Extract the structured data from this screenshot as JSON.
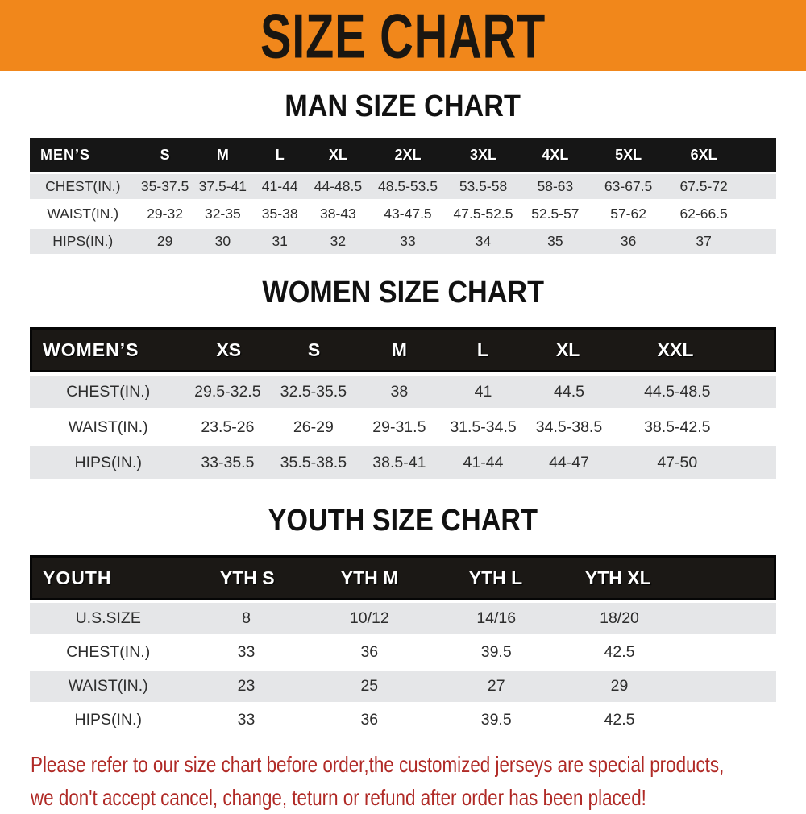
{
  "banner": {
    "title": "SIZE CHART",
    "bg_color": "#F1871B",
    "text_color": "#1a1611"
  },
  "colors": {
    "header_bar": "#161616",
    "row_gray": "#e5e6e8",
    "row_white": "#ffffff",
    "footer_text": "#B02A26"
  },
  "sections": {
    "men": {
      "heading": "MAN SIZE CHART",
      "table": {
        "header": [
          "MEN’S",
          "S",
          "M",
          "L",
          "XL",
          "2XL",
          "3XL",
          "4XL",
          "5XL",
          "6XL"
        ],
        "rows": [
          [
            "CHEST(IN.)",
            "35-37.5",
            "37.5-41",
            "41-44",
            "44-48.5",
            "48.5-53.5",
            "53.5-58",
            "58-63",
            "63-67.5",
            "67.5-72"
          ],
          [
            "WAIST(IN.)",
            "29-32",
            "32-35",
            "35-38",
            "38-43",
            "43-47.5",
            "47.5-52.5",
            "52.5-57",
            "57-62",
            "62-66.5"
          ],
          [
            "HIPS(IN.)",
            "29",
            "30",
            "31",
            "32",
            "33",
            "34",
            "35",
            "36",
            "37"
          ]
        ]
      }
    },
    "women": {
      "heading": "WOMEN SIZE CHART",
      "table": {
        "header": [
          "WOMEN’S",
          "XS",
          "S",
          "M",
          "L",
          "XL",
          "XXL"
        ],
        "rows": [
          [
            "CHEST(IN.)",
            "29.5-32.5",
            "32.5-35.5",
            "38",
            "41",
            "44.5",
            "44.5-48.5"
          ],
          [
            "WAIST(IN.)",
            "23.5-26",
            "26-29",
            "29-31.5",
            "31.5-34.5",
            "34.5-38.5",
            "38.5-42.5"
          ],
          [
            "HIPS(IN.)",
            "33-35.5",
            "35.5-38.5",
            "38.5-41",
            "41-44",
            "44-47",
            "47-50"
          ]
        ]
      }
    },
    "youth": {
      "heading": "YOUTH SIZE CHART",
      "table": {
        "header": [
          "YOUTH",
          "YTH S",
          "YTH M",
          "YTH L",
          "YTH XL"
        ],
        "rows": [
          [
            "U.S.SIZE",
            "8",
            "10/12",
            "14/16",
            "18/20"
          ],
          [
            "CHEST(IN.)",
            "33",
            "36",
            "39.5",
            "42.5"
          ],
          [
            "WAIST(IN.)",
            "23",
            "25",
            "27",
            "29"
          ],
          [
            "HIPS(IN.)",
            "33",
            "36",
            "39.5",
            "42.5"
          ]
        ]
      }
    }
  },
  "footer": {
    "line1": "Please refer to our size chart before order,the customized jerseys are special products,",
    "line2": "we don't accept cancel, change, teturn or refund after order has been placed!"
  }
}
